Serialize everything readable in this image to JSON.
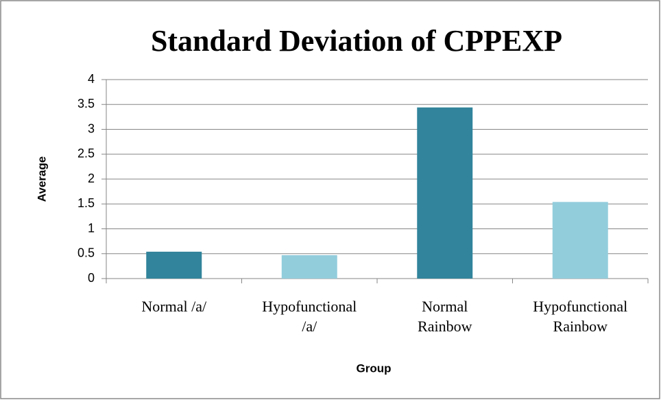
{
  "chart_data": {
    "type": "bar",
    "title": "Standard Deviation of CPPEXP",
    "x_label": "Group",
    "y_label": "Average",
    "categories": [
      "Normal /a/",
      "Hypofunctional /a/",
      "Normal Rainbow",
      "Hypofunctional Rainbow"
    ],
    "values": [
      0.54,
      0.47,
      3.44,
      1.54
    ],
    "colors": [
      "#31849b",
      "#92cddc",
      "#31849b",
      "#92cddc"
    ],
    "ylim": [
      0,
      4
    ],
    "yticks": [
      0,
      0.5,
      1,
      1.5,
      2,
      2.5,
      3,
      3.5,
      4
    ],
    "grid": true
  }
}
